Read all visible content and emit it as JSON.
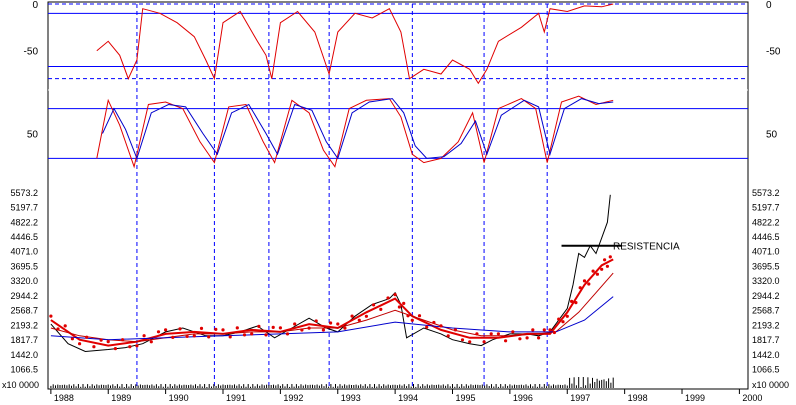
{
  "colors": {
    "price": "#000000",
    "ma": "#c00000",
    "parabolic": "#e00000",
    "oscillator": "#e00000",
    "signal": "#0000cc",
    "guide": "#0000ff",
    "frame": "#000000"
  },
  "chart_data": [
    {
      "type": "line",
      "panel": "oscillator",
      "yticks": [
        "0",
        "-50"
      ],
      "ylim": [
        -90,
        0
      ],
      "levels": [
        -10,
        -67
      ],
      "dashed_levels": [
        0,
        -80
      ],
      "series": [
        {
          "color": "#e00000",
          "points": [
            [
              1988.8,
              -50
            ],
            [
              1989.0,
              -40
            ],
            [
              1989.2,
              -55
            ],
            [
              1989.35,
              -80
            ],
            [
              1989.5,
              -60
            ],
            [
              1989.6,
              -5
            ],
            [
              1989.9,
              -10
            ],
            [
              1990.2,
              -20
            ],
            [
              1990.5,
              -35
            ],
            [
              1990.7,
              -60
            ],
            [
              1990.85,
              -80
            ],
            [
              1991.0,
              -20
            ],
            [
              1991.3,
              -8
            ],
            [
              1991.6,
              -40
            ],
            [
              1991.75,
              -55
            ],
            [
              1991.85,
              -80
            ],
            [
              1992.0,
              -20
            ],
            [
              1992.3,
              -8
            ],
            [
              1992.6,
              -30
            ],
            [
              1992.85,
              -75
            ],
            [
              1993.0,
              -30
            ],
            [
              1993.3,
              -10
            ],
            [
              1993.6,
              -15
            ],
            [
              1993.9,
              -5
            ],
            [
              1994.1,
              -30
            ],
            [
              1994.25,
              -80
            ],
            [
              1994.5,
              -70
            ],
            [
              1994.8,
              -75
            ],
            [
              1995.0,
              -60
            ],
            [
              1995.3,
              -70
            ],
            [
              1995.45,
              -85
            ],
            [
              1995.6,
              -70
            ],
            [
              1995.8,
              -40
            ],
            [
              1996.2,
              -25
            ],
            [
              1996.5,
              -10
            ],
            [
              1996.6,
              -30
            ],
            [
              1996.7,
              -5
            ],
            [
              1997.0,
              -8
            ],
            [
              1997.3,
              -2
            ],
            [
              1997.6,
              -3
            ],
            [
              1997.8,
              0
            ]
          ]
        }
      ]
    },
    {
      "type": "line",
      "panel": "stochastic",
      "yticks": [
        "50"
      ],
      "ylim": [
        0,
        100
      ],
      "levels": [
        80,
        20
      ],
      "series": [
        {
          "color": "#e00000",
          "points": [
            [
              1988.8,
              20
            ],
            [
              1989.0,
              90
            ],
            [
              1989.2,
              60
            ],
            [
              1989.45,
              10
            ],
            [
              1989.7,
              85
            ],
            [
              1990.0,
              88
            ],
            [
              1990.3,
              80
            ],
            [
              1990.6,
              40
            ],
            [
              1990.85,
              15
            ],
            [
              1991.1,
              82
            ],
            [
              1991.4,
              85
            ],
            [
              1991.7,
              40
            ],
            [
              1991.9,
              15
            ],
            [
              1992.2,
              90
            ],
            [
              1992.5,
              75
            ],
            [
              1992.75,
              30
            ],
            [
              1992.95,
              10
            ],
            [
              1993.2,
              80
            ],
            [
              1993.5,
              90
            ],
            [
              1993.9,
              92
            ],
            [
              1994.1,
              70
            ],
            [
              1994.3,
              25
            ],
            [
              1994.5,
              15
            ],
            [
              1994.8,
              20
            ],
            [
              1995.1,
              40
            ],
            [
              1995.35,
              75
            ],
            [
              1995.55,
              15
            ],
            [
              1995.8,
              80
            ],
            [
              1996.2,
              92
            ],
            [
              1996.45,
              80
            ],
            [
              1996.65,
              15
            ],
            [
              1996.9,
              88
            ],
            [
              1997.2,
              95
            ],
            [
              1997.5,
              85
            ],
            [
              1997.8,
              90
            ]
          ]
        },
        {
          "color": "#0000cc",
          "points": [
            [
              1988.9,
              50
            ],
            [
              1989.1,
              80
            ],
            [
              1989.3,
              55
            ],
            [
              1989.5,
              20
            ],
            [
              1989.75,
              75
            ],
            [
              1990.05,
              85
            ],
            [
              1990.35,
              82
            ],
            [
              1990.65,
              50
            ],
            [
              1990.9,
              25
            ],
            [
              1991.15,
              75
            ],
            [
              1991.45,
              85
            ],
            [
              1991.75,
              50
            ],
            [
              1991.95,
              25
            ],
            [
              1992.25,
              85
            ],
            [
              1992.55,
              78
            ],
            [
              1992.8,
              40
            ],
            [
              1993.0,
              20
            ],
            [
              1993.25,
              75
            ],
            [
              1993.55,
              88
            ],
            [
              1993.95,
              92
            ],
            [
              1994.15,
              75
            ],
            [
              1994.35,
              35
            ],
            [
              1994.55,
              20
            ],
            [
              1994.85,
              22
            ],
            [
              1995.15,
              38
            ],
            [
              1995.4,
              65
            ],
            [
              1995.6,
              25
            ],
            [
              1995.85,
              72
            ],
            [
              1996.25,
              90
            ],
            [
              1996.5,
              82
            ],
            [
              1996.7,
              25
            ],
            [
              1996.95,
              80
            ],
            [
              1997.25,
              92
            ],
            [
              1997.55,
              86
            ],
            [
              1997.8,
              88
            ]
          ]
        }
      ]
    },
    {
      "type": "line",
      "panel": "price",
      "ylim": [
        900,
        5800
      ],
      "yticks": [
        "5573.2",
        "5197.7",
        "4822.2",
        "4446.5",
        "4071.0",
        "3695.5",
        "3320.0",
        "2944.2",
        "2568.7",
        "2193.2",
        "1817.7",
        "1442.0",
        "1066.5"
      ],
      "volume_label": "x10 0000",
      "annotations": [
        "RESISTENCIA"
      ],
      "resistance_level": 4200,
      "series": [
        {
          "color": "#000000",
          "points": [
            [
              1988.0,
              2200
            ],
            [
              1988.3,
              1700
            ],
            [
              1988.6,
              1500
            ],
            [
              1989.0,
              1550
            ],
            [
              1989.3,
              1600
            ],
            [
              1989.6,
              1700
            ],
            [
              1990.0,
              2000
            ],
            [
              1990.3,
              2100
            ],
            [
              1990.7,
              1900
            ],
            [
              1991.0,
              1900
            ],
            [
              1991.3,
              2000
            ],
            [
              1991.6,
              2150
            ],
            [
              1991.9,
              1850
            ],
            [
              1992.2,
              2100
            ],
            [
              1992.5,
              2350
            ],
            [
              1992.8,
              2100
            ],
            [
              1993.0,
              2000
            ],
            [
              1993.3,
              2400
            ],
            [
              1993.6,
              2700
            ],
            [
              1993.9,
              2850
            ],
            [
              1994.0,
              3000
            ],
            [
              1994.1,
              2700
            ],
            [
              1994.2,
              1850
            ],
            [
              1994.5,
              2100
            ],
            [
              1994.8,
              1950
            ],
            [
              1995.0,
              1800
            ],
            [
              1995.3,
              1700
            ],
            [
              1995.5,
              1650
            ],
            [
              1995.7,
              1800
            ],
            [
              1996.0,
              1950
            ],
            [
              1996.3,
              1950
            ],
            [
              1996.5,
              1900
            ],
            [
              1996.7,
              2000
            ],
            [
              1996.85,
              2300
            ],
            [
              1997.0,
              2600
            ],
            [
              1997.1,
              3200
            ],
            [
              1997.2,
              4000
            ],
            [
              1997.3,
              3900
            ],
            [
              1997.4,
              4200
            ],
            [
              1997.5,
              4000
            ],
            [
              1997.6,
              4400
            ],
            [
              1997.7,
              4800
            ],
            [
              1997.75,
              5500
            ]
          ]
        },
        {
          "color": "#e00000",
          "points": [
            [
              1988.0,
              2300
            ],
            [
              1988.5,
              1800
            ],
            [
              1989.0,
              1650
            ],
            [
              1989.5,
              1750
            ],
            [
              1990.0,
              1950
            ],
            [
              1990.5,
              2000
            ],
            [
              1991.0,
              1950
            ],
            [
              1991.5,
              2050
            ],
            [
              1992.0,
              2000
            ],
            [
              1992.5,
              2200
            ],
            [
              1993.0,
              2100
            ],
            [
              1993.5,
              2500
            ],
            [
              1994.0,
              2850
            ],
            [
              1994.3,
              2400
            ],
            [
              1994.8,
              2050
            ],
            [
              1995.3,
              1850
            ],
            [
              1995.8,
              1850
            ],
            [
              1996.3,
              1950
            ],
            [
              1996.7,
              1950
            ],
            [
              1997.0,
              2500
            ],
            [
              1997.3,
              3200
            ],
            [
              1997.6,
              3700
            ],
            [
              1997.8,
              3850
            ]
          ]
        },
        {
          "color": "#c00000",
          "points": [
            [
              1988.0,
              2100
            ],
            [
              1988.5,
              1900
            ],
            [
              1989.0,
              1800
            ],
            [
              1989.5,
              1750
            ],
            [
              1990.0,
              1850
            ],
            [
              1990.5,
              1950
            ],
            [
              1991.0,
              1950
            ],
            [
              1991.5,
              2000
            ],
            [
              1992.0,
              2000
            ],
            [
              1992.5,
              2100
            ],
            [
              1993.0,
              2100
            ],
            [
              1993.5,
              2300
            ],
            [
              1994.0,
              2550
            ],
            [
              1994.5,
              2300
            ],
            [
              1995.0,
              2050
            ],
            [
              1995.5,
              1900
            ],
            [
              1996.0,
              1900
            ],
            [
              1996.5,
              1950
            ],
            [
              1996.8,
              2000
            ],
            [
              1997.2,
              2500
            ],
            [
              1997.5,
              3000
            ],
            [
              1997.8,
              3500
            ]
          ]
        },
        {
          "color": "#0000cc",
          "points": [
            [
              1988.0,
              1900
            ],
            [
              1989.0,
              1800
            ],
            [
              1990.0,
              1850
            ],
            [
              1991.0,
              1900
            ],
            [
              1992.0,
              1950
            ],
            [
              1993.0,
              2000
            ],
            [
              1994.0,
              2250
            ],
            [
              1995.0,
              2100
            ],
            [
              1996.0,
              2000
            ],
            [
              1996.8,
              2000
            ],
            [
              1997.3,
              2300
            ],
            [
              1997.8,
              2900
            ]
          ]
        }
      ]
    }
  ],
  "x_axis": {
    "labels": [
      "1988",
      "1989",
      "1990",
      "1991",
      "1992",
      "1993",
      "1994",
      "1995",
      "1996",
      "1997",
      "1998",
      "1999",
      "2000"
    ],
    "range": [
      1987.95,
      2000.15
    ]
  },
  "guides_years": [
    1989.5,
    1990.85,
    1991.8,
    1992.85,
    1994.3,
    1995.55,
    1996.65
  ]
}
